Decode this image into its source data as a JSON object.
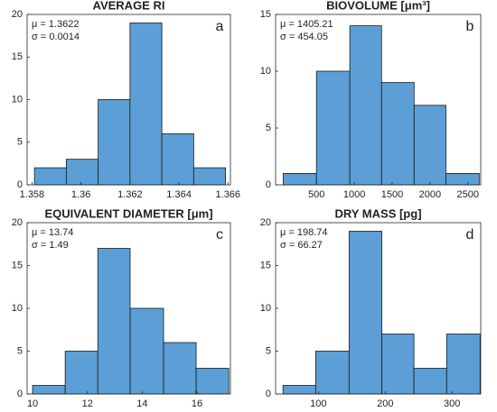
{
  "chart_data": [
    {
      "type": "histogram",
      "title": "AVERAGE RI",
      "label": "a",
      "annotations": [
        "μ = 1.3622",
        "σ = 0.0014"
      ],
      "bins": [
        1.3581,
        1.3594,
        1.3607,
        1.362,
        1.3633,
        1.3646,
        1.3659
      ],
      "counts": [
        2,
        3,
        10,
        19,
        6,
        2
      ],
      "color": "#5b9fd6",
      "xlim": [
        1.3578,
        1.3661
      ],
      "xticks": [
        1.358,
        1.36,
        1.362,
        1.364,
        1.366
      ],
      "ylim": [
        0,
        20
      ],
      "yticks": [
        0,
        5,
        10,
        15,
        20
      ]
    },
    {
      "type": "histogram",
      "title": "BIOVOLUME [μm³]",
      "label": "b",
      "annotations": [
        "μ = 1405.21",
        "σ = 454.05"
      ],
      "bins": [
        60,
        500,
        940,
        1360,
        1790,
        2210,
        2650
      ],
      "counts": [
        1,
        10,
        14,
        9,
        7,
        1
      ],
      "color": "#5b9fd6",
      "xlim": [
        -40,
        2670
      ],
      "xticks": [
        500,
        1000,
        1500,
        2000,
        2500
      ],
      "ylim": [
        0,
        15
      ],
      "yticks": [
        0,
        5,
        10,
        15
      ]
    },
    {
      "type": "histogram",
      "title": "EQUIVALENT DIAMETER [μm]",
      "label": "c",
      "annotations": [
        "μ = 13.74",
        "σ = 1.49"
      ],
      "bins": [
        10,
        11.19,
        12.38,
        13.56,
        14.78,
        15.97,
        17.16
      ],
      "counts": [
        1,
        5,
        17,
        10,
        6,
        3
      ],
      "color": "#5b9fd6",
      "xlim": [
        9.8,
        17.22
      ],
      "xticks": [
        10,
        12,
        14,
        16
      ],
      "ylim": [
        0,
        20
      ],
      "yticks": [
        0,
        5,
        10,
        15,
        20
      ]
    },
    {
      "type": "histogram",
      "title": "DRY MASS [pg]",
      "label": "d",
      "annotations": [
        "μ = 198.74",
        "σ = 66.27"
      ],
      "bins": [
        47,
        96,
        146,
        195,
        243,
        292,
        342
      ],
      "counts": [
        1,
        5,
        19,
        7,
        3,
        7
      ],
      "color": "#5b9fd6",
      "xlim": [
        36,
        343
      ],
      "xticks": [
        100,
        200,
        300
      ],
      "ylim": [
        0,
        20
      ],
      "yticks": [
        0,
        5,
        10,
        15,
        20
      ]
    }
  ]
}
